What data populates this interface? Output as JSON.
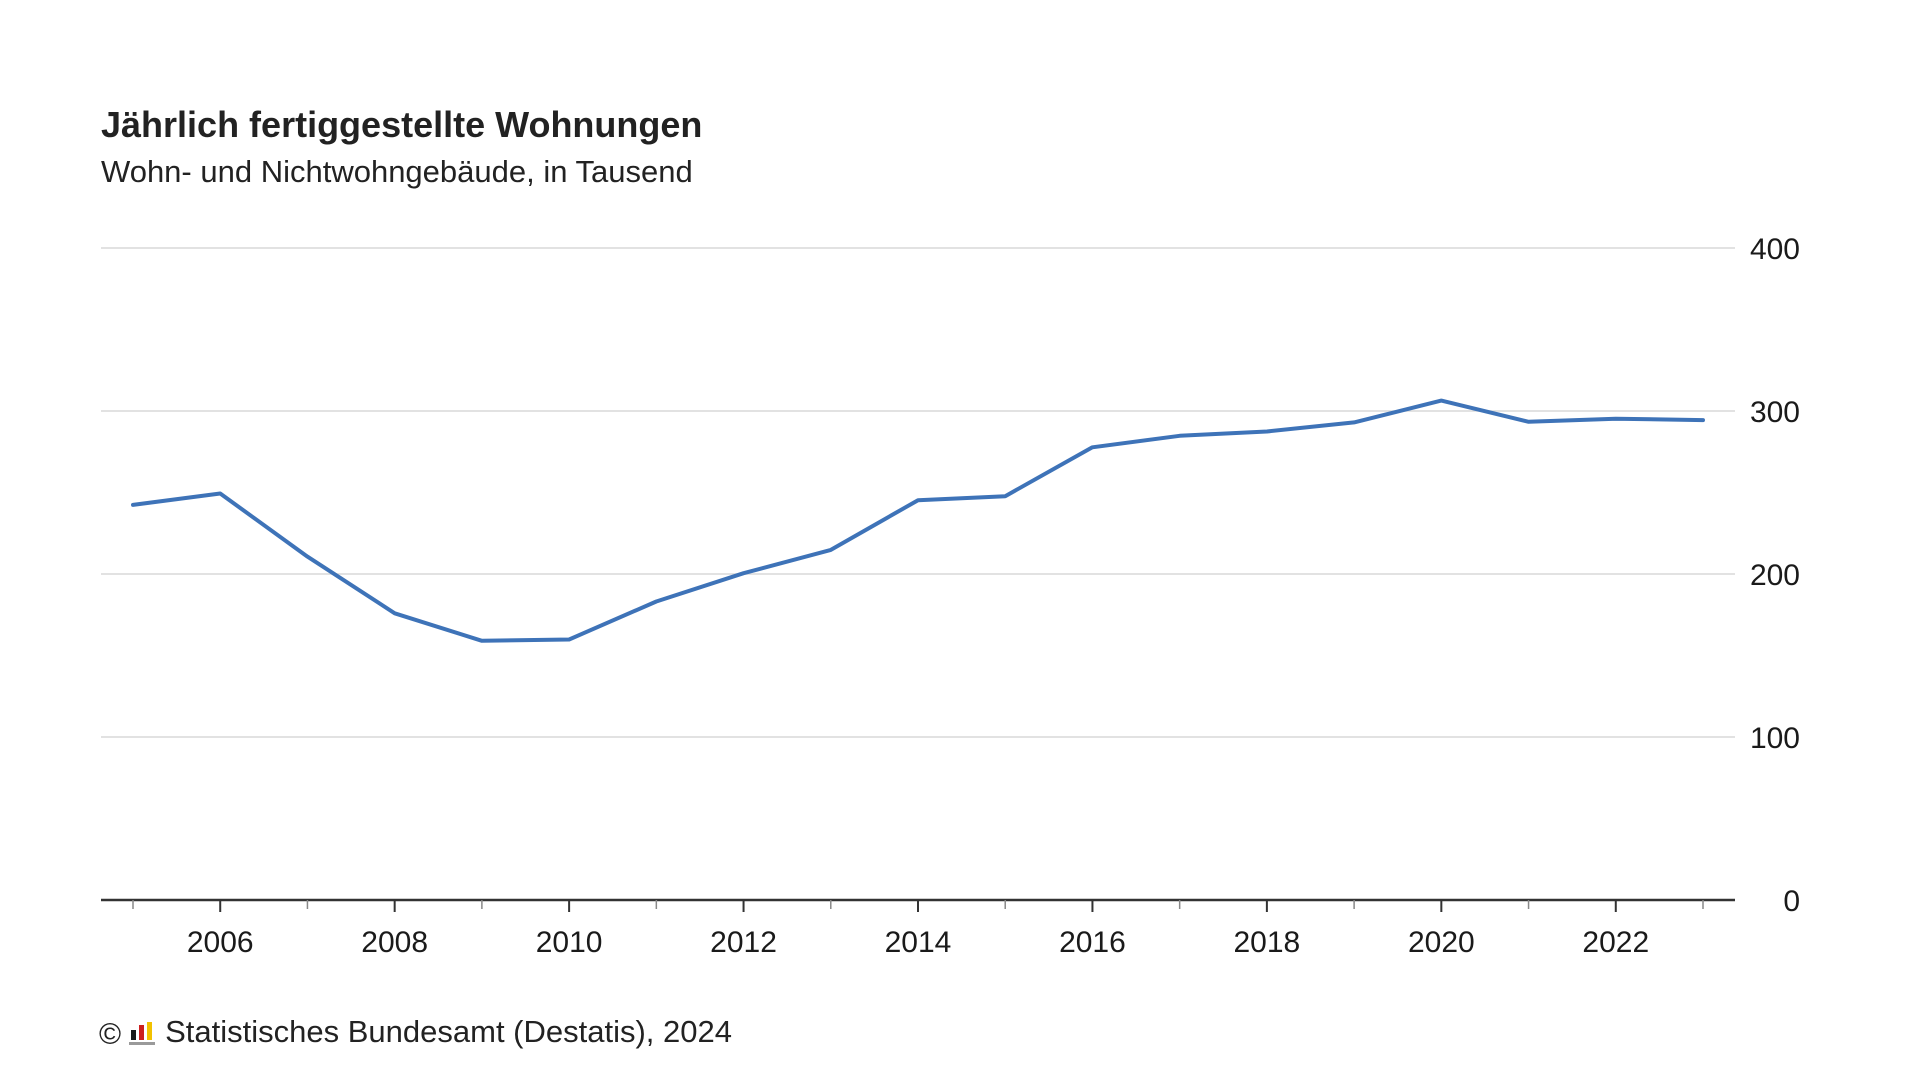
{
  "header": {
    "title": "Jährlich fertiggestellte Wohnungen",
    "subtitle": "Wohn- und Nichtwohngebäude, in Tausend"
  },
  "footer": {
    "copyright_symbol": "©",
    "logo_icon": "destatis-logo-icon",
    "source": "Statistisches Bundesamt (Destatis), 2024"
  },
  "colors": {
    "line": "#3e73b8",
    "grid": "#d9d9d9",
    "axis": "#333333"
  },
  "chart_data": {
    "type": "line",
    "title": "Jährlich fertiggestellte Wohnungen",
    "subtitle": "Wohn- und Nichtwohngebäude, in Tausend",
    "xlabel": "",
    "ylabel": "",
    "x": [
      2005,
      2006,
      2007,
      2008,
      2009,
      2010,
      2011,
      2012,
      2013,
      2014,
      2015,
      2016,
      2017,
      2018,
      2019,
      2020,
      2021,
      2022,
      2023
    ],
    "series": [
      {
        "values": [
          242.4,
          249.4,
          210.7,
          175.9,
          159.0,
          159.8,
          183.1,
          200.5,
          214.8,
          245.3,
          247.7,
          277.7,
          284.8,
          287.4,
          293.0,
          306.4,
          293.4,
          295.3,
          294.4
        ]
      }
    ],
    "xticks": [
      "2006",
      "2008",
      "2010",
      "2012",
      "2014",
      "2016",
      "2018",
      "2020",
      "2022"
    ],
    "yticks": [
      "0",
      "100",
      "200",
      "300",
      "400"
    ],
    "ylim": [
      0,
      400
    ],
    "xlim": [
      2005,
      2023
    ],
    "grid": "horizontal",
    "y_axis_position": "right",
    "legend": "none"
  }
}
